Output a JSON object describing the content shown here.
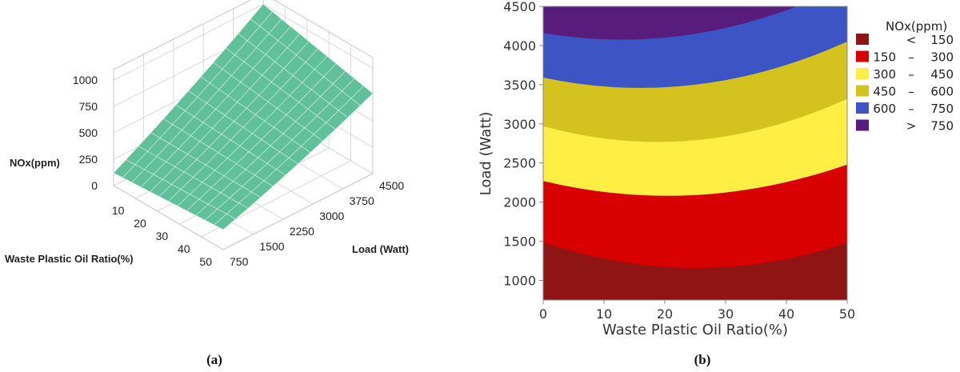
{
  "chart_data": [
    {
      "type": "surface",
      "caption": "(a)",
      "zlabel": "NOx(ppm)",
      "xlabel": "Waste Plastic Oil Ratio(%)",
      "ylabel": "Load (Watt)",
      "x_ticks": [
        10,
        20,
        30,
        40,
        50
      ],
      "y_ticks": [
        750,
        1500,
        2250,
        3000,
        3750,
        4500
      ],
      "z_ticks": [
        0,
        250,
        500,
        750,
        1000
      ],
      "x_range": [
        0,
        50
      ],
      "y_range": [
        750,
        4500
      ],
      "z_range": [
        0,
        1100
      ],
      "surface_color": "#5fc09a",
      "corner_values": [
        {
          "x": 0,
          "y": 750,
          "z": 120
        },
        {
          "x": 50,
          "y": 750,
          "z": 190
        },
        {
          "x": 0,
          "y": 4500,
          "z": 1000
        },
        {
          "x": 50,
          "y": 4500,
          "z": 760
        }
      ]
    },
    {
      "type": "contour",
      "caption": "(b)",
      "xlabel": "Waste Plastic Oil Ratio(%)",
      "ylabel": "Load (Watt)",
      "xlim": [
        0,
        50
      ],
      "ylim": [
        750,
        4500
      ],
      "x_ticks": [
        0,
        10,
        20,
        30,
        40,
        50
      ],
      "y_ticks": [
        1000,
        1500,
        2000,
        2500,
        3000,
        3500,
        4000,
        4500
      ],
      "legend": {
        "title": "NOx(ppm)",
        "position": "right",
        "items": [
          {
            "label": "<",
            "low": "",
            "high": "150",
            "color": "#8f1414"
          },
          {
            "label": "–",
            "low": "150",
            "high": "300",
            "color": "#d80000"
          },
          {
            "label": "–",
            "low": "300",
            "high": "450",
            "color": "#ffee44"
          },
          {
            "label": "–",
            "low": "450",
            "high": "600",
            "color": "#d4c21e"
          },
          {
            "label": "–",
            "low": "600",
            "high": "750",
            "color": "#3c54c4"
          },
          {
            "label": ">",
            "low": "",
            "high": "750",
            "color": "#581c7c"
          }
        ]
      },
      "boundaries": [
        {
          "level": 150,
          "points": [
            {
              "x": 0,
              "y": 1490
            },
            {
              "x": 25,
              "y": 1160
            },
            {
              "x": 50,
              "y": 1480
            }
          ]
        },
        {
          "level": 300,
          "points": [
            {
              "x": 0,
              "y": 2270
            },
            {
              "x": 25,
              "y": 2090
            },
            {
              "x": 50,
              "y": 2480
            }
          ]
        },
        {
          "level": 450,
          "points": [
            {
              "x": 0,
              "y": 2970
            },
            {
              "x": 25,
              "y": 2790
            },
            {
              "x": 50,
              "y": 3320
            }
          ]
        },
        {
          "level": 600,
          "points": [
            {
              "x": 0,
              "y": 3590
            },
            {
              "x": 25,
              "y": 3500
            },
            {
              "x": 50,
              "y": 4050
            }
          ]
        },
        {
          "level": 750,
          "points": [
            {
              "x": 0,
              "y": 4160
            },
            {
              "x": 25,
              "y": 4150
            },
            {
              "x": 50,
              "y": 4780
            }
          ]
        }
      ]
    }
  ]
}
